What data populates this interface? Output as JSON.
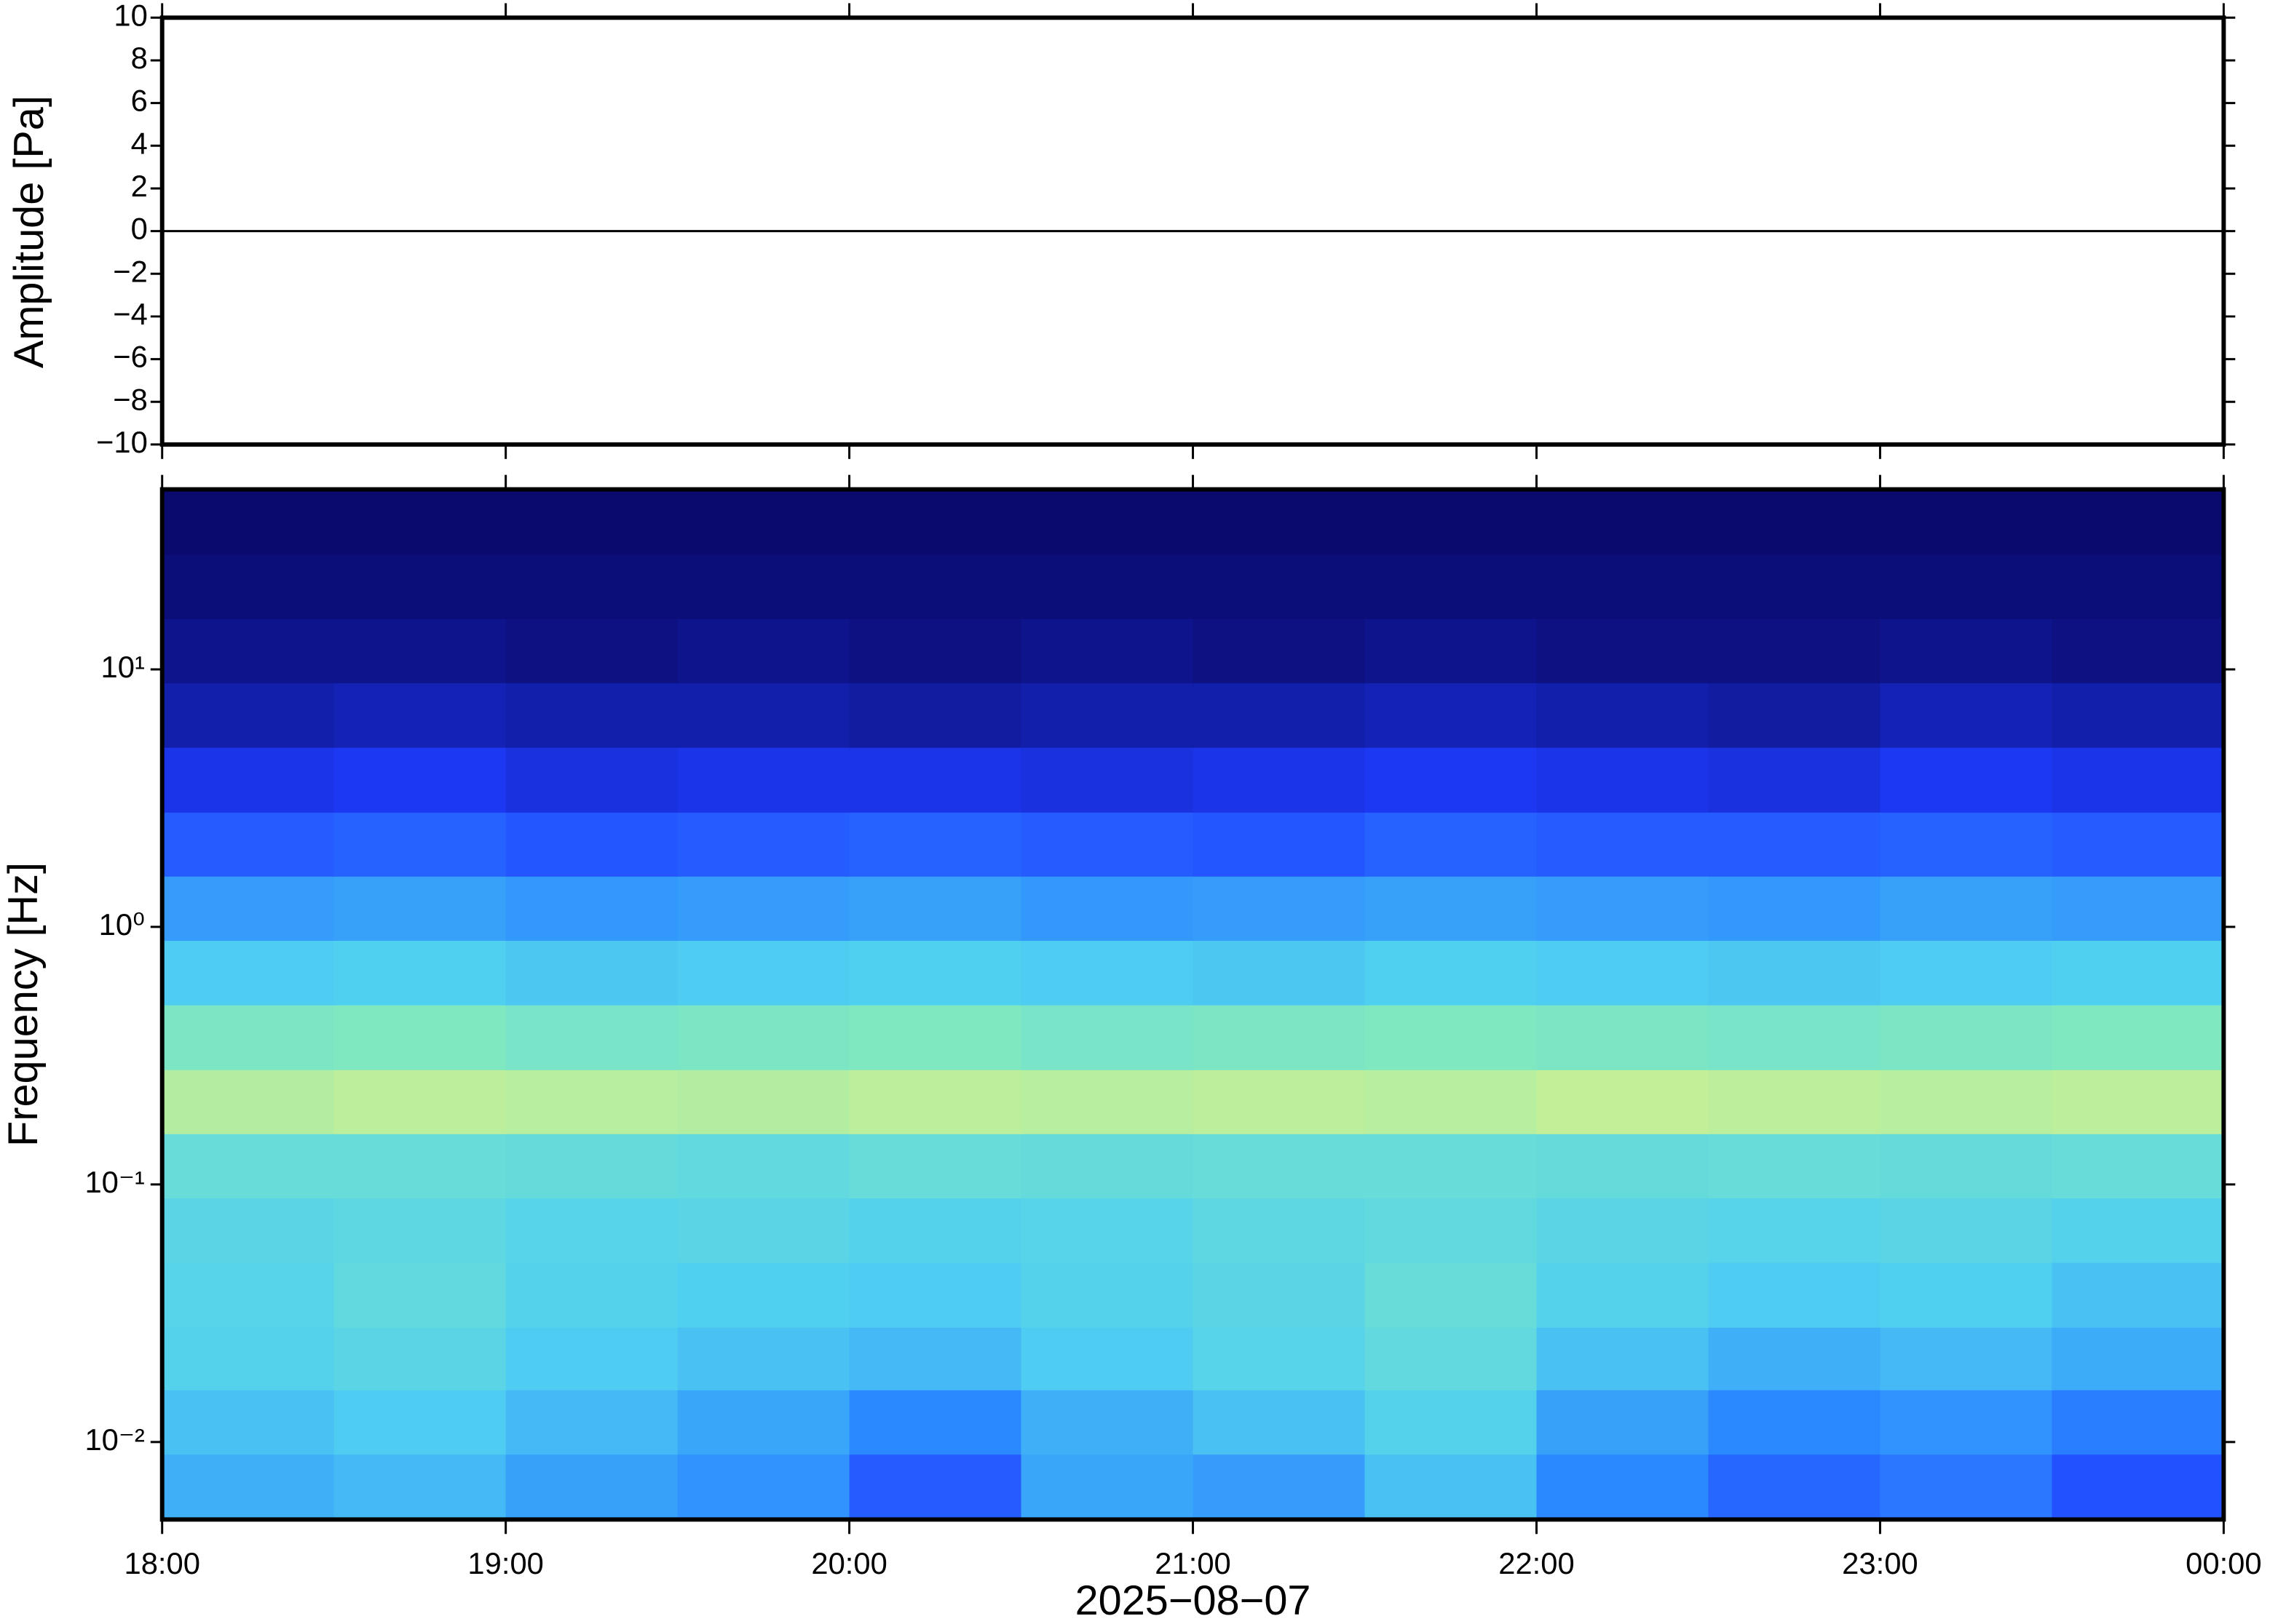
{
  "chart_data": [
    {
      "type": "line",
      "ylabel": "Amplitude [Pa]",
      "color": "#000000",
      "x": [
        18,
        18.25,
        18.5,
        18.75,
        19,
        19.25,
        19.5,
        19.75,
        20,
        20.25,
        20.5,
        20.75,
        21,
        21.25,
        21.5,
        21.75,
        22,
        22.25,
        22.5,
        22.75,
        23,
        23.25,
        23.5,
        23.75,
        24
      ],
      "values": [
        0,
        0,
        0,
        0,
        0,
        0,
        0,
        0,
        0,
        0,
        0,
        0,
        0,
        0,
        0,
        0,
        0,
        0,
        0,
        0,
        0,
        0,
        0,
        0,
        0
      ],
      "xlim": [
        18,
        24
      ],
      "ylim": [
        -10,
        10
      ],
      "yticks": [
        {
          "value": -10,
          "label": "−10"
        },
        {
          "value": -8,
          "label": "−8"
        },
        {
          "value": -6,
          "label": "−6"
        },
        {
          "value": -4,
          "label": "−4"
        },
        {
          "value": -2,
          "label": "−2"
        },
        0,
        2,
        4,
        6,
        8,
        10
      ]
    },
    {
      "type": "heatmap",
      "ylabel": "Frequency [Hz]",
      "xlabel": "2025−08−07",
      "xlim": [
        18,
        24
      ],
      "xticks": [
        {
          "value": 18,
          "label": "18:00"
        },
        {
          "value": 19,
          "label": "19:00"
        },
        {
          "value": 20,
          "label": "20:00"
        },
        {
          "value": 21,
          "label": "21:00"
        },
        {
          "value": 22,
          "label": "22:00"
        },
        {
          "value": 23,
          "label": "23:00"
        },
        {
          "value": 24,
          "label": "00:00"
        }
      ],
      "ylim": [
        0.005,
        50
      ],
      "log_y": true,
      "yticks": [
        {
          "value": 0.01,
          "label": "10⁻²"
        },
        {
          "value": 0.1,
          "label": "10⁻¹"
        },
        {
          "value": 1,
          "label": "10⁰"
        },
        {
          "value": 10,
          "label": "10¹"
        }
      ],
      "x_bins": [
        18,
        18.5,
        19,
        19.5,
        20,
        20.5,
        21,
        21.5,
        22,
        22.5,
        23,
        23.5,
        24
      ],
      "y_bins": [
        0.005,
        0.009,
        0.016,
        0.028,
        0.05,
        0.089,
        0.158,
        0.28,
        0.5,
        0.89,
        1.58,
        2.8,
        5,
        8.9,
        15.8,
        28,
        50
      ],
      "colormap": [
        "#0a0a6e",
        "#1e3cff",
        "#2c8cff",
        "#50d0f0",
        "#80e8c0",
        "#d0f090",
        "#f8d878",
        "#f8a050"
      ],
      "levels": [
        [
          0.36,
          0.38,
          0.33,
          0.3,
          0.2,
          0.34,
          0.32,
          0.4,
          0.28,
          0.22,
          0.25,
          0.18
        ],
        [
          0.4,
          0.42,
          0.38,
          0.34,
          0.28,
          0.36,
          0.4,
          0.44,
          0.33,
          0.28,
          0.3,
          0.26
        ],
        [
          0.44,
          0.46,
          0.42,
          0.4,
          0.38,
          0.42,
          0.45,
          0.48,
          0.4,
          0.36,
          0.38,
          0.35
        ],
        [
          0.45,
          0.48,
          0.44,
          0.43,
          0.42,
          0.44,
          0.46,
          0.5,
          0.44,
          0.42,
          0.43,
          0.4
        ],
        [
          0.46,
          0.47,
          0.45,
          0.46,
          0.44,
          0.45,
          0.47,
          0.48,
          0.46,
          0.45,
          0.46,
          0.44
        ],
        [
          0.5,
          0.5,
          0.49,
          0.48,
          0.5,
          0.49,
          0.5,
          0.5,
          0.49,
          0.5,
          0.49,
          0.5
        ],
        [
          0.66,
          0.68,
          0.67,
          0.66,
          0.68,
          0.67,
          0.68,
          0.67,
          0.69,
          0.68,
          0.67,
          0.68
        ],
        [
          0.56,
          0.57,
          0.55,
          0.56,
          0.57,
          0.55,
          0.56,
          0.57,
          0.56,
          0.55,
          0.56,
          0.57
        ],
        [
          0.42,
          0.43,
          0.41,
          0.42,
          0.43,
          0.42,
          0.41,
          0.43,
          0.42,
          0.41,
          0.42,
          0.43
        ],
        [
          0.32,
          0.33,
          0.31,
          0.32,
          0.33,
          0.31,
          0.32,
          0.33,
          0.32,
          0.31,
          0.33,
          0.32
        ],
        [
          0.2,
          0.21,
          0.19,
          0.2,
          0.21,
          0.2,
          0.19,
          0.21,
          0.2,
          0.2,
          0.21,
          0.2
        ],
        [
          0.12,
          0.13,
          0.11,
          0.12,
          0.12,
          0.11,
          0.12,
          0.13,
          0.12,
          0.11,
          0.13,
          0.12
        ],
        [
          0.06,
          0.07,
          0.06,
          0.06,
          0.05,
          0.06,
          0.06,
          0.07,
          0.06,
          0.05,
          0.07,
          0.06
        ],
        [
          0.03,
          0.03,
          0.02,
          0.03,
          0.02,
          0.03,
          0.02,
          0.03,
          0.02,
          0.02,
          0.03,
          0.02
        ],
        [
          0.01,
          0.01,
          0.01,
          0.01,
          0.01,
          0.01,
          0.01,
          0.01,
          0.01,
          0.01,
          0.01,
          0.01
        ],
        [
          0,
          0,
          0,
          0,
          0,
          0,
          0,
          0,
          0,
          0,
          0,
          0
        ]
      ]
    }
  ]
}
